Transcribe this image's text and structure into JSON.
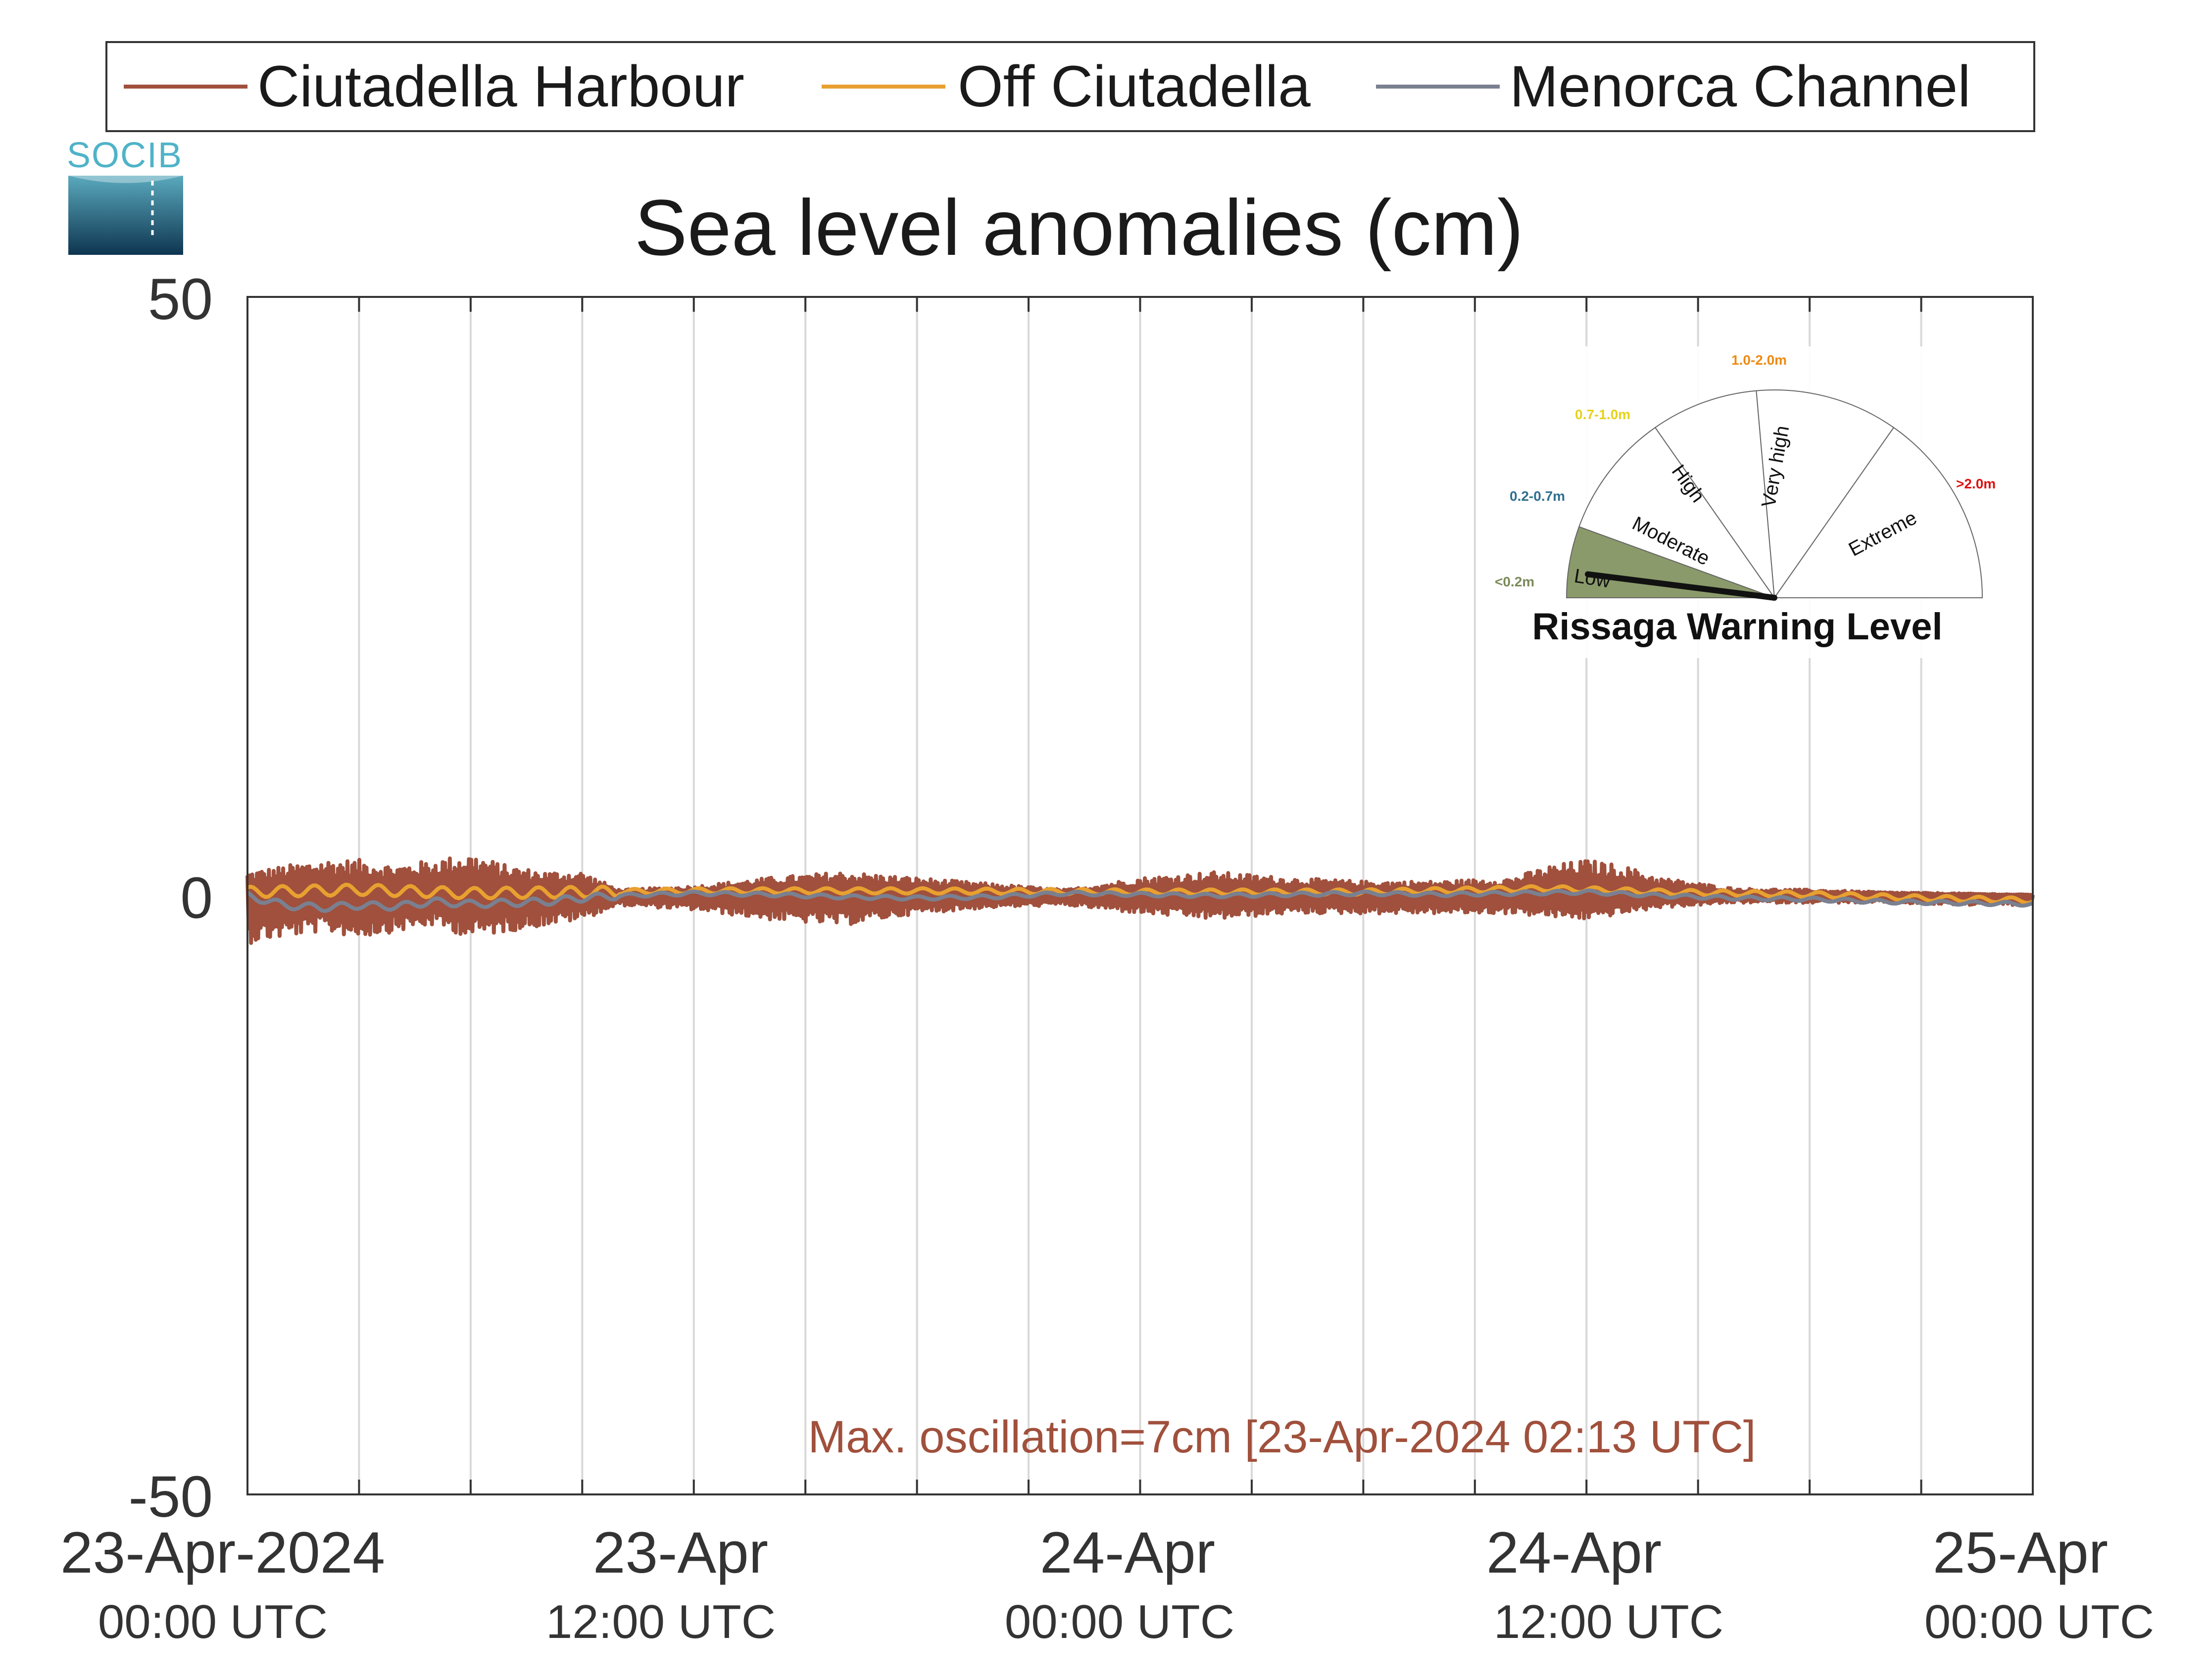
{
  "chart_data": {
    "type": "line",
    "title": "Sea level anomalies (cm)",
    "ylim": [
      -50,
      50
    ],
    "yticks": [
      "50",
      "0",
      "-50"
    ],
    "xlim_hours": [
      0,
      48
    ],
    "x_unit": "hours from 23-Apr-2024 00:00 UTC",
    "grid": "vertical",
    "legend_position": "top",
    "xticks": [
      {
        "date": "23-Apr-2024",
        "time": "00:00 UTC"
      },
      {
        "date": "23-Apr",
        "time": "12:00 UTC"
      },
      {
        "date": "24-Apr",
        "time": "00:00 UTC"
      },
      {
        "date": "24-Apr",
        "time": "12:00 UTC"
      },
      {
        "date": "25-Apr",
        "time": "00:00 UTC"
      }
    ],
    "series": [
      {
        "name": "Ciutadella Harbour",
        "color": "#a0503c",
        "envelope": {
          "x": [
            0,
            1,
            2,
            3,
            4,
            5,
            6,
            7,
            8,
            9,
            10,
            12,
            14,
            16,
            18,
            20,
            22,
            24,
            26,
            28,
            30,
            32,
            34,
            35,
            36,
            37,
            38,
            40,
            42,
            44,
            46,
            48
          ],
          "upper": [
            2,
            2.5,
            3,
            3,
            2.5,
            3,
            3.5,
            2.5,
            2,
            2,
            0.5,
            0.8,
            1.5,
            2,
            1.5,
            1,
            0.5,
            1.5,
            2,
            1.5,
            1.2,
            1.2,
            1.5,
            2.5,
            3,
            2.5,
            1.5,
            0.6,
            0.5,
            0.3,
            0.2,
            0.1
          ],
          "lower": [
            -4,
            -3.5,
            -3,
            -3.5,
            -3,
            -2.5,
            -3.5,
            -3,
            -2.5,
            -2,
            -0.8,
            -1.2,
            -2,
            -2.5,
            -1.5,
            -1,
            -0.8,
            -1.5,
            -2,
            -1.5,
            -1.5,
            -1.5,
            -1.5,
            -1.8,
            -2,
            -1.5,
            -1,
            -0.6,
            -0.6,
            -0.6,
            -0.8,
            -0.8
          ]
        }
      },
      {
        "name": "Off Ciutadella",
        "color": "#e8a030",
        "points": [
          [
            0,
            0.3
          ],
          [
            3,
            0.5
          ],
          [
            6,
            0.2
          ],
          [
            9,
            0.3
          ],
          [
            12,
            0.4
          ],
          [
            18,
            0.4
          ],
          [
            24,
            0.3
          ],
          [
            30,
            0.3
          ],
          [
            35,
            0.6
          ],
          [
            38,
            0.3
          ],
          [
            42,
            0.1
          ],
          [
            45,
            -0.2
          ],
          [
            48,
            -0.4
          ]
        ]
      },
      {
        "name": "Menorca Channel",
        "color": "#7a8090",
        "points": [
          [
            0,
            0
          ],
          [
            1,
            -0.8
          ],
          [
            2,
            -1
          ],
          [
            3,
            -0.8
          ],
          [
            4,
            -0.9
          ],
          [
            5,
            -0.5
          ],
          [
            6,
            -0.7
          ],
          [
            7,
            -0.6
          ],
          [
            8,
            -0.5
          ],
          [
            9,
            -0.2
          ],
          [
            10,
            0
          ],
          [
            12,
            0.2
          ],
          [
            14,
            0.1
          ],
          [
            16,
            -0.1
          ],
          [
            18,
            -0.2
          ],
          [
            20,
            -0.1
          ],
          [
            22,
            0.2
          ],
          [
            24,
            0.1
          ],
          [
            26,
            0
          ],
          [
            28,
            0.1
          ],
          [
            30,
            0.2
          ],
          [
            32,
            0.1
          ],
          [
            34,
            0.2
          ],
          [
            36,
            0.3
          ],
          [
            38,
            0
          ],
          [
            40,
            -0.2
          ],
          [
            42,
            -0.3
          ],
          [
            44,
            -0.5
          ],
          [
            46,
            -0.6
          ],
          [
            48,
            -0.7
          ]
        ]
      }
    ],
    "annotation": "Max. oscillation=7cm [23-Apr-2024 02:13 UTC]",
    "annotation_color": "#a0503c"
  },
  "logo": {
    "text": "SOCIB"
  },
  "gauge": {
    "title": "Rissaga Warning Level",
    "needle_value": 0.04,
    "sectors": [
      {
        "label": "Low",
        "range": "<0.2m",
        "range_color": "#7a8a5a",
        "fill": "#8a9a6a"
      },
      {
        "label": "Moderate",
        "range": "0.2-0.7m",
        "range_color": "#2f6f8f",
        "fill": "#ffffff"
      },
      {
        "label": "High",
        "range": "0.7-1.0m",
        "range_color": "#e6d21a",
        "fill": "#ffffff"
      },
      {
        "label": "Very high",
        "range": "1.0-2.0m",
        "range_color": "#ee8a12",
        "fill": "#ffffff"
      },
      {
        "label": "Extreme",
        "range": ">2.0m",
        "range_color": "#dd1111",
        "fill": "#ffffff"
      }
    ]
  }
}
